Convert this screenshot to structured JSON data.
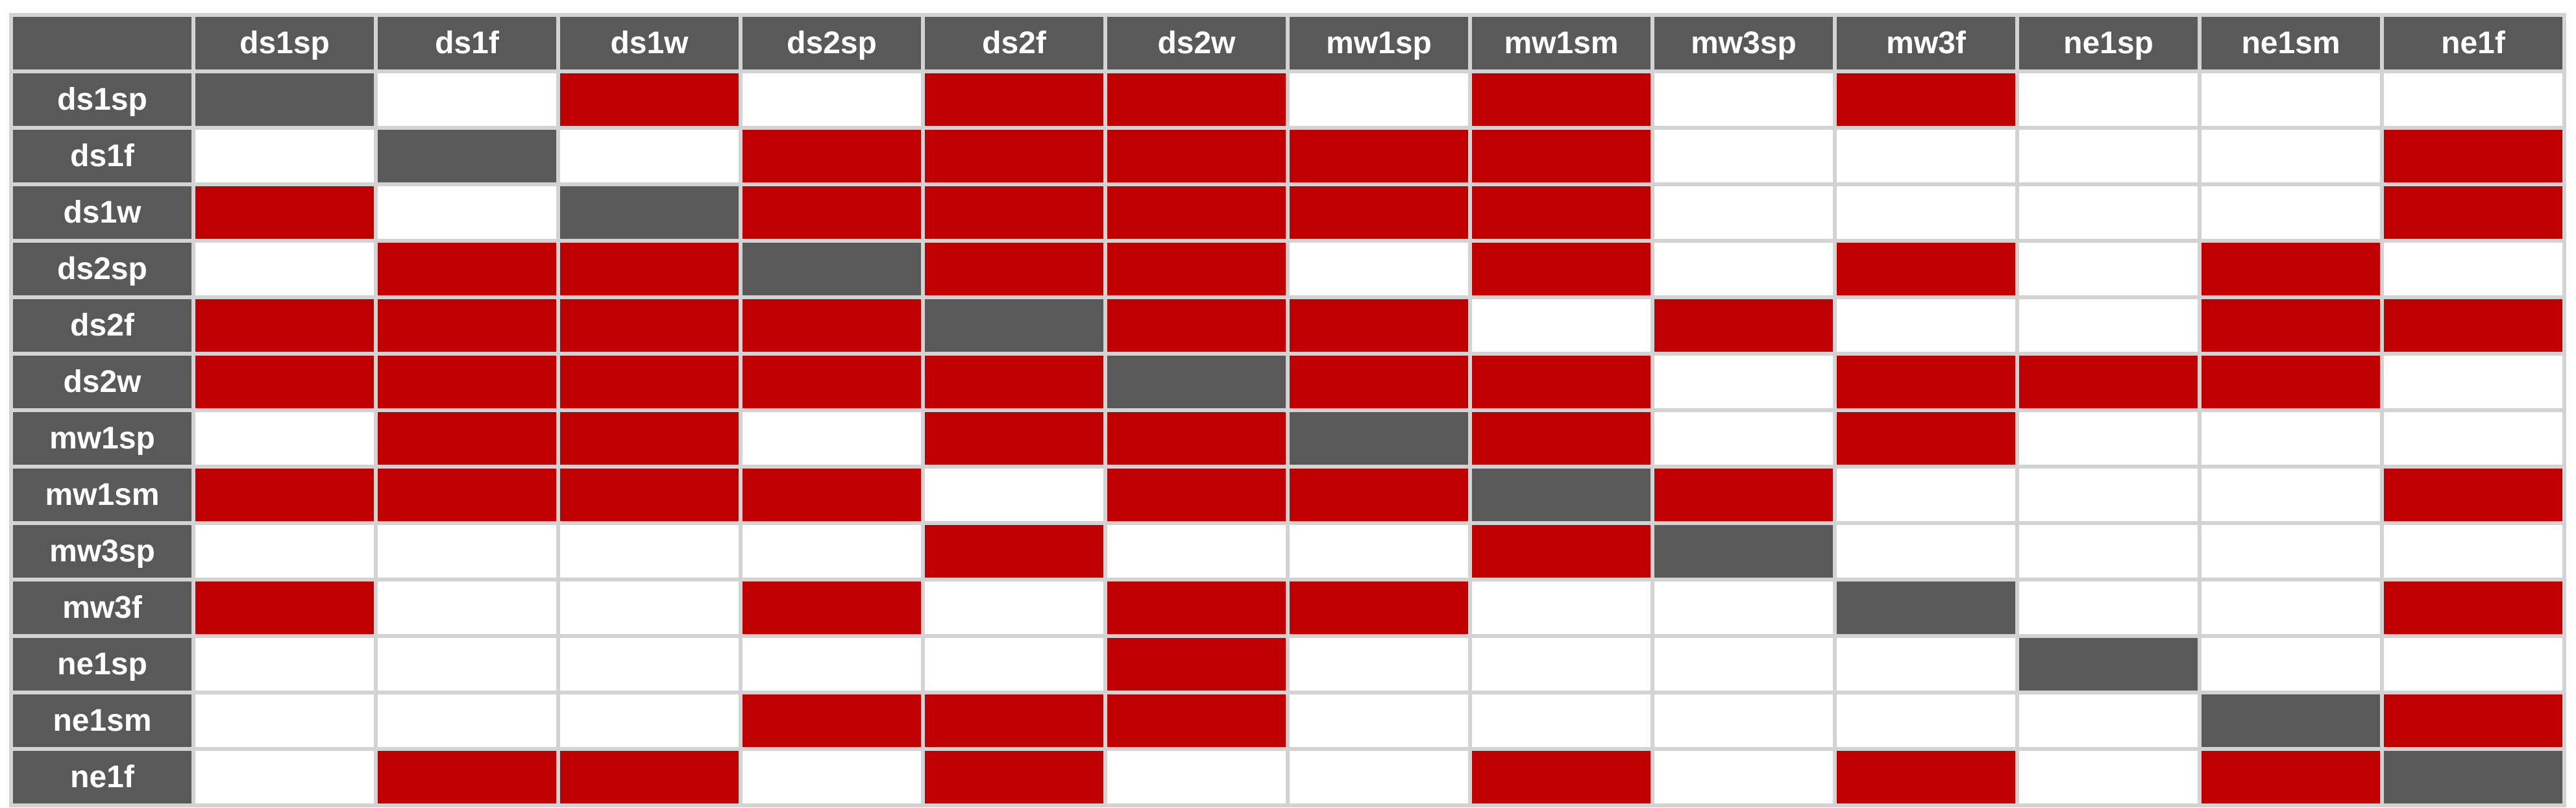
{
  "table": {
    "corner_label": "",
    "labels": [
      "ds1sp",
      "ds1f",
      "ds1w",
      "ds2sp",
      "ds2f",
      "ds2w",
      "mw1sp",
      "mw1sm",
      "mw3sp",
      "mw3f",
      "ne1sp",
      "ne1sm",
      "ne1f"
    ]
  },
  "colors": {
    "header_bg": "#595959",
    "diagonal_bg": "#595959",
    "highlight_red": "#c00000",
    "grid_line": "#d3d3d3",
    "cell_bg": "#ffffff",
    "header_text": "#ffffff"
  },
  "chart_data": {
    "type": "heatmap",
    "title": "",
    "rows": [
      "ds1sp",
      "ds1f",
      "ds1w",
      "ds2sp",
      "ds2f",
      "ds2w",
      "mw1sp",
      "mw1sm",
      "mw3sp",
      "mw3f",
      "ne1sp",
      "ne1sm",
      "ne1f"
    ],
    "columns": [
      "ds1sp",
      "ds1f",
      "ds1w",
      "ds2sp",
      "ds2f",
      "ds2w",
      "mw1sp",
      "mw1sm",
      "mw3sp",
      "mw3f",
      "ne1sp",
      "ne1sm",
      "ne1f"
    ],
    "encoding": {
      "0": "white",
      "1": "red",
      "2": "gray-diagonal-self"
    },
    "values": [
      [
        2,
        0,
        1,
        0,
        1,
        1,
        0,
        1,
        0,
        1,
        0,
        0,
        0
      ],
      [
        0,
        2,
        0,
        1,
        1,
        1,
        1,
        1,
        0,
        0,
        0,
        0,
        1
      ],
      [
        1,
        0,
        2,
        1,
        1,
        1,
        1,
        1,
        0,
        0,
        0,
        0,
        1
      ],
      [
        0,
        1,
        1,
        2,
        1,
        1,
        0,
        1,
        0,
        1,
        0,
        1,
        0
      ],
      [
        1,
        1,
        1,
        1,
        2,
        1,
        1,
        0,
        1,
        0,
        0,
        1,
        1
      ],
      [
        1,
        1,
        1,
        1,
        1,
        2,
        1,
        1,
        0,
        1,
        1,
        1,
        0
      ],
      [
        0,
        1,
        1,
        0,
        1,
        1,
        2,
        1,
        0,
        1,
        0,
        0,
        0
      ],
      [
        1,
        1,
        1,
        1,
        0,
        1,
        1,
        2,
        1,
        0,
        0,
        0,
        1
      ],
      [
        0,
        0,
        0,
        0,
        1,
        0,
        0,
        1,
        2,
        0,
        0,
        0,
        0
      ],
      [
        1,
        0,
        0,
        1,
        0,
        1,
        1,
        0,
        0,
        2,
        0,
        0,
        1
      ],
      [
        0,
        0,
        0,
        0,
        0,
        1,
        0,
        0,
        0,
        0,
        2,
        0,
        0
      ],
      [
        0,
        0,
        0,
        1,
        1,
        1,
        0,
        0,
        0,
        0,
        0,
        2,
        1
      ],
      [
        0,
        1,
        1,
        0,
        1,
        0,
        0,
        1,
        0,
        1,
        0,
        1,
        2
      ]
    ],
    "layout": {
      "grid": true,
      "legend": "none",
      "diagonal": "self-pairs shaded gray"
    }
  }
}
